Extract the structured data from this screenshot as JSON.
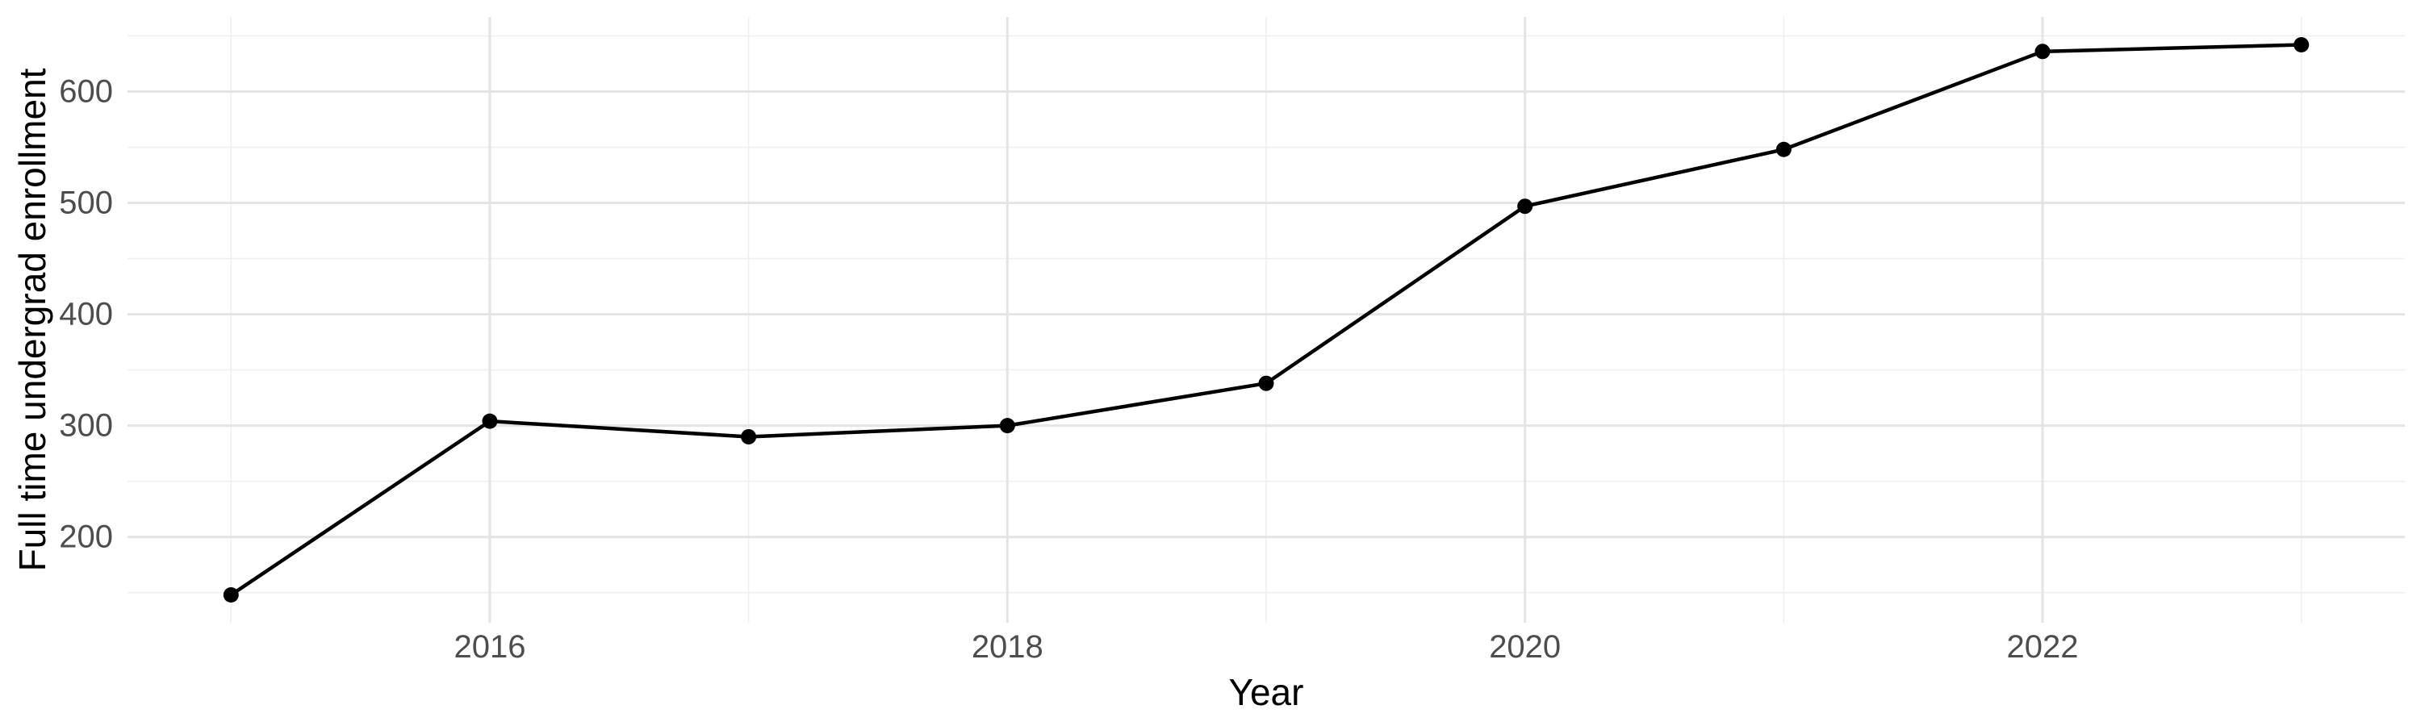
{
  "chart_data": {
    "type": "line",
    "title": "",
    "xlabel": "Year",
    "ylabel": "Full time undergrad enrollment",
    "x": [
      2015,
      2016,
      2017,
      2018,
      2019,
      2020,
      2021,
      2022,
      2023
    ],
    "values": [
      148,
      304,
      290,
      300,
      338,
      497,
      548,
      636,
      642
    ],
    "series": [
      {
        "name": "Full time undergrad enrollment",
        "values": [
          148,
          304,
          290,
          300,
          338,
          497,
          548,
          636,
          642
        ]
      }
    ],
    "x_range": [
      2014.6,
      2023.4
    ],
    "y_range": [
      123,
      667
    ],
    "x_major_ticks": [
      2016,
      2018,
      2020,
      2022
    ],
    "x_tick_labels": [
      "2016",
      "2018",
      "2020",
      "2022"
    ],
    "x_minor_gridlines": [
      2015,
      2017,
      2019,
      2021,
      2023
    ],
    "y_major_ticks": [
      200,
      300,
      400,
      500,
      600
    ],
    "y_tick_labels": [
      "200",
      "300",
      "400",
      "500",
      "600"
    ],
    "y_minor_gridlines": [
      150,
      250,
      350,
      450,
      550,
      650
    ],
    "grid": "major-and-minor",
    "legend": "none",
    "marker": "filled-circle",
    "colors": {
      "background": "#ffffff",
      "grid_major": "#e4e4e4",
      "grid_minor": "#efefef",
      "line": "#000000",
      "point": "#000000",
      "tick_text": "#4d4d4d",
      "axis_title_text": "#000000"
    }
  }
}
